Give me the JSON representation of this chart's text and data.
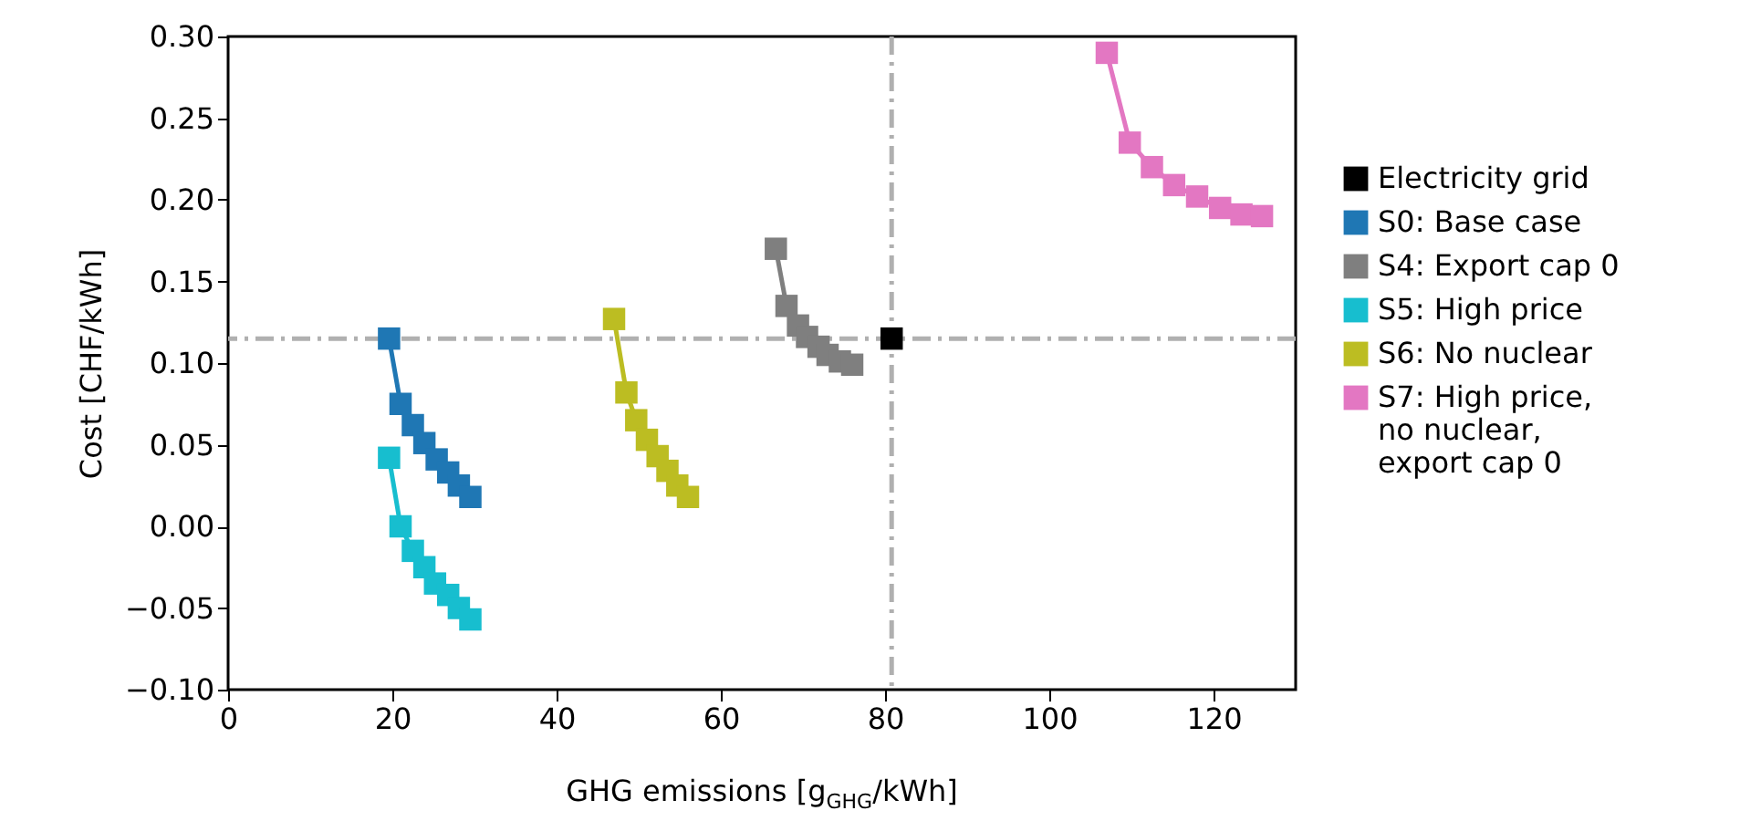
{
  "chart_data": {
    "type": "line",
    "xlabel": "GHG emissions [g$_{GHG}$/kWh]",
    "ylabel": "Cost [CHF/kWh]",
    "xlim": [
      0,
      130
    ],
    "xticks": [
      0,
      20,
      40,
      60,
      80,
      100,
      120
    ],
    "ylim": [
      -0.1,
      0.3
    ],
    "yticks": [
      {
        "value": -0.1,
        "label": "−0.10"
      },
      {
        "value": -0.05,
        "label": "−0.05"
      },
      {
        "value": 0,
        "label": "0.00"
      },
      {
        "value": 0.05,
        "label": "0.05"
      },
      {
        "value": 0.1,
        "label": "0.10"
      },
      {
        "value": 0.15,
        "label": "0.15"
      },
      {
        "value": 0.2,
        "label": "0.20"
      },
      {
        "value": 0.25,
        "label": "0.25"
      },
      {
        "value": 0.3,
        "label": "0.30"
      }
    ],
    "grid": false,
    "legend": "right",
    "marker": "square",
    "line_style": "solid",
    "ref_lines": [
      {
        "axis": "x",
        "value": 80.8,
        "color": "#b0b0b0",
        "line_style": "dashed"
      },
      {
        "axis": "y",
        "value": 0.115,
        "color": "#b0b0b0",
        "line_style": "dashed"
      }
    ],
    "series": [
      {
        "name": "Electricity grid",
        "type": "scatter",
        "color": "#000000",
        "x": [
          80.8
        ],
        "values": [
          0.115
        ]
      },
      {
        "name": "S0: Base case",
        "color": "#1f77b4",
        "x": [
          19.6,
          21,
          22.5,
          23.9,
          25.4,
          26.8,
          28.1,
          29.5
        ],
        "values": [
          0.115,
          0.075,
          0.062,
          0.051,
          0.041,
          0.033,
          0.025,
          0.018
        ]
      },
      {
        "name": "S4: Export cap 0",
        "color": "#7f7f7f",
        "x": [
          66.7,
          68,
          69.4,
          70.5,
          71.9,
          73,
          74.5,
          76
        ],
        "values": [
          0.17,
          0.135,
          0.123,
          0.116,
          0.11,
          0.105,
          0.101,
          0.099
        ]
      },
      {
        "name": "S5: High price",
        "color": "#17becf",
        "x": [
          19.6,
          21,
          22.5,
          23.9,
          25.2,
          26.8,
          28.1,
          29.5
        ],
        "values": [
          0.042,
          0.0,
          -0.015,
          -0.025,
          -0.035,
          -0.042,
          -0.05,
          -0.057
        ]
      },
      {
        "name": "S6: No nuclear",
        "color": "#bcbd22",
        "x": [
          47,
          48.5,
          49.7,
          51,
          52.3,
          53.5,
          54.7,
          56
        ],
        "values": [
          0.127,
          0.082,
          0.065,
          0.053,
          0.043,
          0.034,
          0.025,
          0.018
        ]
      },
      {
        "name": "S7: High price, no nuclear, export cap 0",
        "color": "#e377c2",
        "x": [
          107,
          109.8,
          112.5,
          115.2,
          118,
          120.8,
          123.4,
          125.9
        ],
        "values": [
          0.29,
          0.235,
          0.22,
          0.209,
          0.202,
          0.195,
          0.191,
          0.19
        ]
      }
    ]
  }
}
